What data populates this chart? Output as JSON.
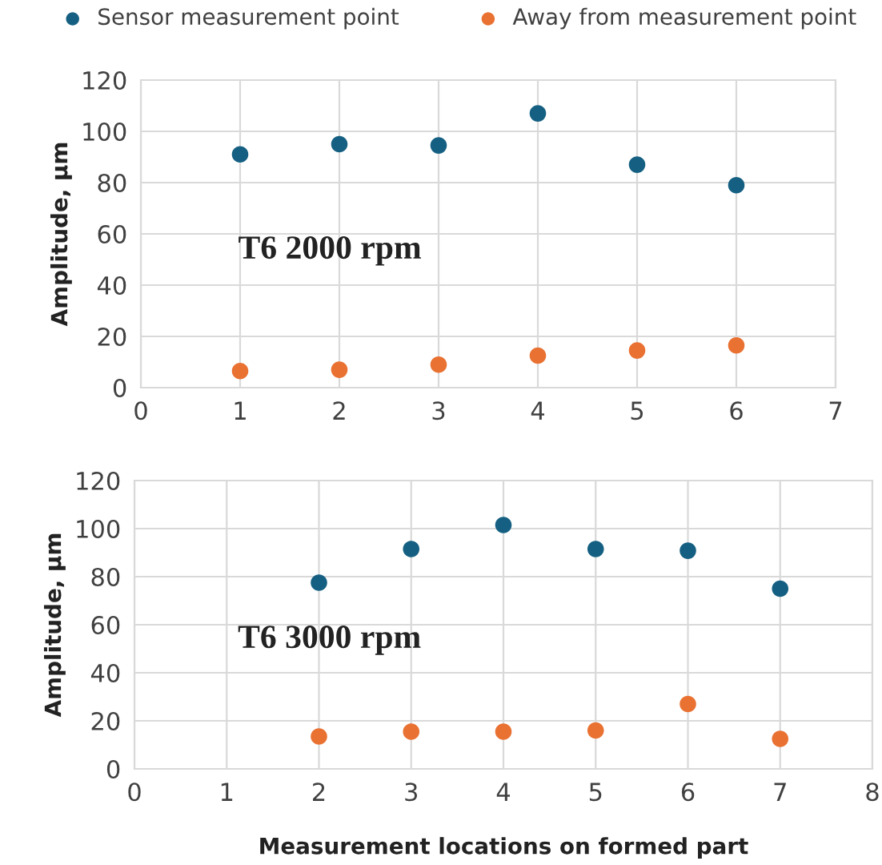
{
  "chart_data": [
    {
      "type": "scatter",
      "ylabel": "Amplitude, µm",
      "annotations": [
        "T6 2000 rpm"
      ],
      "x": [
        1,
        2,
        3,
        4,
        5,
        6
      ],
      "series": [
        {
          "name": "Sensor measurement point",
          "color": "#156082",
          "values": [
            91,
            95,
            94.5,
            107,
            87,
            79
          ]
        },
        {
          "name": "Away from measurement point",
          "color": "#e97132",
          "values": [
            6.5,
            7,
            9,
            12.5,
            14.5,
            16.5
          ]
        }
      ],
      "xlim": [
        0,
        7
      ],
      "xticks": [
        0,
        1,
        2,
        3,
        4,
        5,
        6,
        7
      ],
      "ylim": [
        0,
        120
      ],
      "yticks": [
        0,
        20,
        40,
        60,
        80,
        100,
        120
      ],
      "grid": true,
      "legend": "top",
      "marker": "circle"
    },
    {
      "type": "scatter",
      "ylabel": "Amplitude, µm",
      "xlabel": "Measurement locations on formed part",
      "annotations": [
        "T6 3000 rpm"
      ],
      "x": [
        2,
        3,
        4,
        5,
        6,
        7
      ],
      "series": [
        {
          "color": "#156082",
          "values": [
            77.5,
            91.5,
            101.5,
            91.5,
            90.8,
            75
          ]
        },
        {
          "color": "#e97132",
          "values": [
            13.5,
            15.5,
            15.5,
            16,
            27,
            12.5
          ]
        }
      ],
      "xlim": [
        0,
        8
      ],
      "xticks": [
        0,
        1,
        2,
        3,
        4,
        5,
        6,
        7,
        8
      ],
      "ylim": [
        0,
        120
      ],
      "yticks": [
        0,
        20,
        40,
        60,
        80,
        100,
        120
      ],
      "grid": true,
      "marker": "circle"
    }
  ]
}
